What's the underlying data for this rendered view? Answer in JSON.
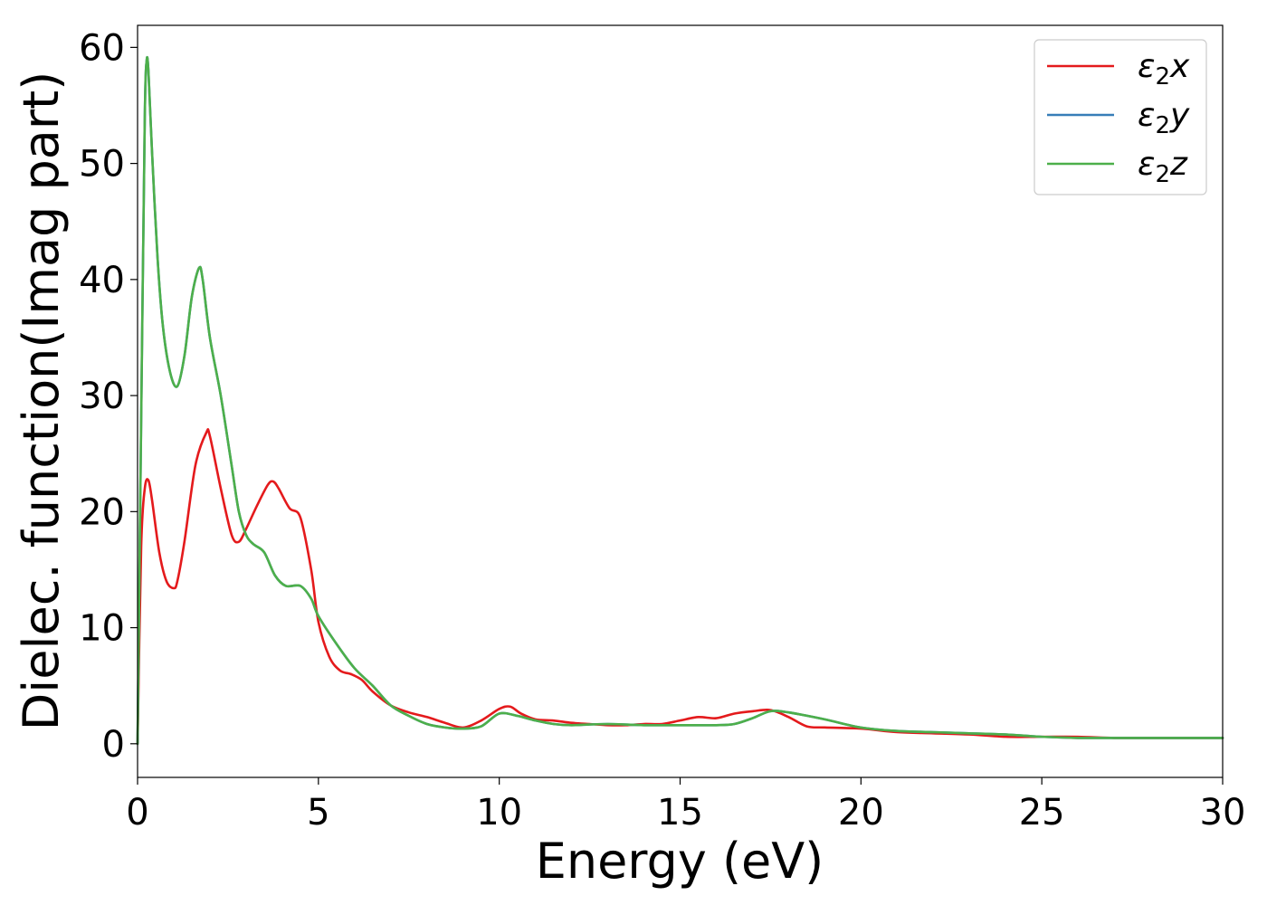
{
  "chart_data": {
    "type": "line",
    "xlabel": "Energy (eV)",
    "ylabel": "Dielec. function(Imag part)",
    "xlim": [
      0,
      30
    ],
    "ylim": [
      -2.9,
      61.9
    ],
    "xticks": [
      0,
      5,
      10,
      15,
      20,
      25,
      30
    ],
    "yticks": [
      0,
      10,
      20,
      30,
      40,
      50,
      60
    ],
    "xtick_labels": [
      "0",
      "5",
      "10",
      "15",
      "20",
      "25",
      "30"
    ],
    "ytick_labels": [
      "0",
      "10",
      "20",
      "30",
      "40",
      "50",
      "60"
    ],
    "grid": false,
    "legend_position": "top-right",
    "series": [
      {
        "name": "ε2x",
        "legend_base": "ε",
        "legend_sub": "2",
        "legend_suffix": "x",
        "color": "#e41a1c",
        "x": [
          0,
          0.1,
          0.2,
          0.3,
          0.4,
          0.6,
          0.8,
          1.0,
          1.1,
          1.3,
          1.6,
          1.9,
          2.0,
          2.3,
          2.6,
          2.8,
          3.0,
          3.3,
          3.6,
          3.75,
          3.9,
          4.2,
          4.5,
          4.8,
          5.0,
          5.3,
          5.6,
          5.9,
          6.2,
          6.5,
          7.0,
          7.5,
          8.0,
          8.5,
          9.0,
          9.5,
          10.0,
          10.3,
          10.6,
          11.0,
          11.5,
          12.0,
          12.5,
          13.0,
          13.5,
          14.0,
          14.5,
          15.0,
          15.5,
          16.0,
          16.5,
          17.0,
          17.5,
          18.0,
          18.5,
          19.0,
          20.0,
          21.0,
          22.0,
          23.0,
          24.0,
          25.0,
          26.0,
          27.0,
          28.0,
          29.0,
          30.0
        ],
        "values": [
          0,
          17,
          22,
          22.7,
          21,
          16.5,
          14,
          13.4,
          14,
          17.5,
          24,
          26.8,
          26.5,
          22,
          18,
          17.4,
          18.5,
          20.5,
          22.3,
          22.6,
          22,
          20.3,
          19.5,
          15,
          10.5,
          7.5,
          6.3,
          6,
          5.5,
          4.5,
          3.3,
          2.7,
          2.3,
          1.8,
          1.4,
          2,
          3,
          3.2,
          2.6,
          2.1,
          2,
          1.8,
          1.7,
          1.6,
          1.6,
          1.7,
          1.7,
          2.0,
          2.3,
          2.2,
          2.6,
          2.8,
          2.9,
          2.3,
          1.5,
          1.4,
          1.3,
          1.0,
          0.9,
          0.8,
          0.6,
          0.6,
          0.6,
          0.5,
          0.5,
          0.5,
          0.5
        ]
      },
      {
        "name": "ε2y",
        "legend_base": "ε",
        "legend_sub": "2",
        "legend_suffix": "y",
        "color": "#377eb8",
        "x": [
          0,
          0.1,
          0.2,
          0.25,
          0.3,
          0.4,
          0.55,
          0.7,
          0.9,
          1.1,
          1.3,
          1.5,
          1.7,
          1.8,
          2.0,
          2.3,
          2.6,
          2.8,
          3.0,
          3.2,
          3.5,
          3.8,
          4.1,
          4.5,
          4.8,
          5.0,
          5.5,
          6.0,
          6.5,
          7.0,
          7.5,
          8.0,
          8.5,
          9.0,
          9.5,
          10.0,
          10.5,
          11.0,
          11.5,
          12.0,
          13.0,
          14.0,
          15.0,
          16.0,
          16.5,
          17.0,
          17.5,
          18.0,
          19.0,
          20.0,
          21.0,
          22.0,
          23.0,
          24.0,
          25.0,
          26.0,
          27.0,
          28.0,
          29.0,
          30.0
        ],
        "values": [
          0,
          28,
          54,
          58.8,
          58,
          51,
          42,
          36,
          32,
          30.8,
          33.5,
          38.5,
          41,
          40,
          35,
          30,
          24,
          20,
          18,
          17.2,
          16.5,
          14.5,
          13.6,
          13.6,
          12.5,
          11,
          8.6,
          6.5,
          5,
          3.3,
          2.4,
          1.7,
          1.4,
          1.3,
          1.5,
          2.6,
          2.4,
          2.0,
          1.7,
          1.6,
          1.7,
          1.6,
          1.6,
          1.6,
          1.7,
          2.2,
          2.8,
          2.7,
          2.1,
          1.4,
          1.1,
          1.0,
          0.9,
          0.8,
          0.6,
          0.5,
          0.5,
          0.5,
          0.5,
          0.5
        ]
      },
      {
        "name": "ε2z",
        "legend_base": "ε",
        "legend_sub": "2",
        "legend_suffix": "z",
        "color": "#4daf4a",
        "x": [
          0,
          0.1,
          0.2,
          0.25,
          0.3,
          0.4,
          0.55,
          0.7,
          0.9,
          1.1,
          1.3,
          1.5,
          1.7,
          1.8,
          2.0,
          2.3,
          2.6,
          2.8,
          3.0,
          3.2,
          3.5,
          3.8,
          4.1,
          4.5,
          4.8,
          5.0,
          5.5,
          6.0,
          6.5,
          7.0,
          7.5,
          8.0,
          8.5,
          9.0,
          9.5,
          10.0,
          10.5,
          11.0,
          11.5,
          12.0,
          13.0,
          14.0,
          15.0,
          16.0,
          16.5,
          17.0,
          17.5,
          18.0,
          19.0,
          20.0,
          21.0,
          22.0,
          23.0,
          24.0,
          25.0,
          26.0,
          27.0,
          28.0,
          29.0,
          30.0
        ],
        "values": [
          0,
          28,
          54,
          58.8,
          58,
          51,
          42,
          36,
          32,
          30.8,
          33.5,
          38.5,
          41,
          40,
          35,
          30,
          24,
          20,
          18,
          17.2,
          16.5,
          14.5,
          13.6,
          13.6,
          12.5,
          11,
          8.6,
          6.5,
          5,
          3.3,
          2.4,
          1.7,
          1.4,
          1.3,
          1.5,
          2.6,
          2.4,
          2.0,
          1.7,
          1.6,
          1.7,
          1.6,
          1.6,
          1.6,
          1.7,
          2.2,
          2.8,
          2.7,
          2.1,
          1.4,
          1.1,
          1.0,
          0.9,
          0.8,
          0.6,
          0.5,
          0.5,
          0.5,
          0.5,
          0.5
        ]
      }
    ]
  }
}
